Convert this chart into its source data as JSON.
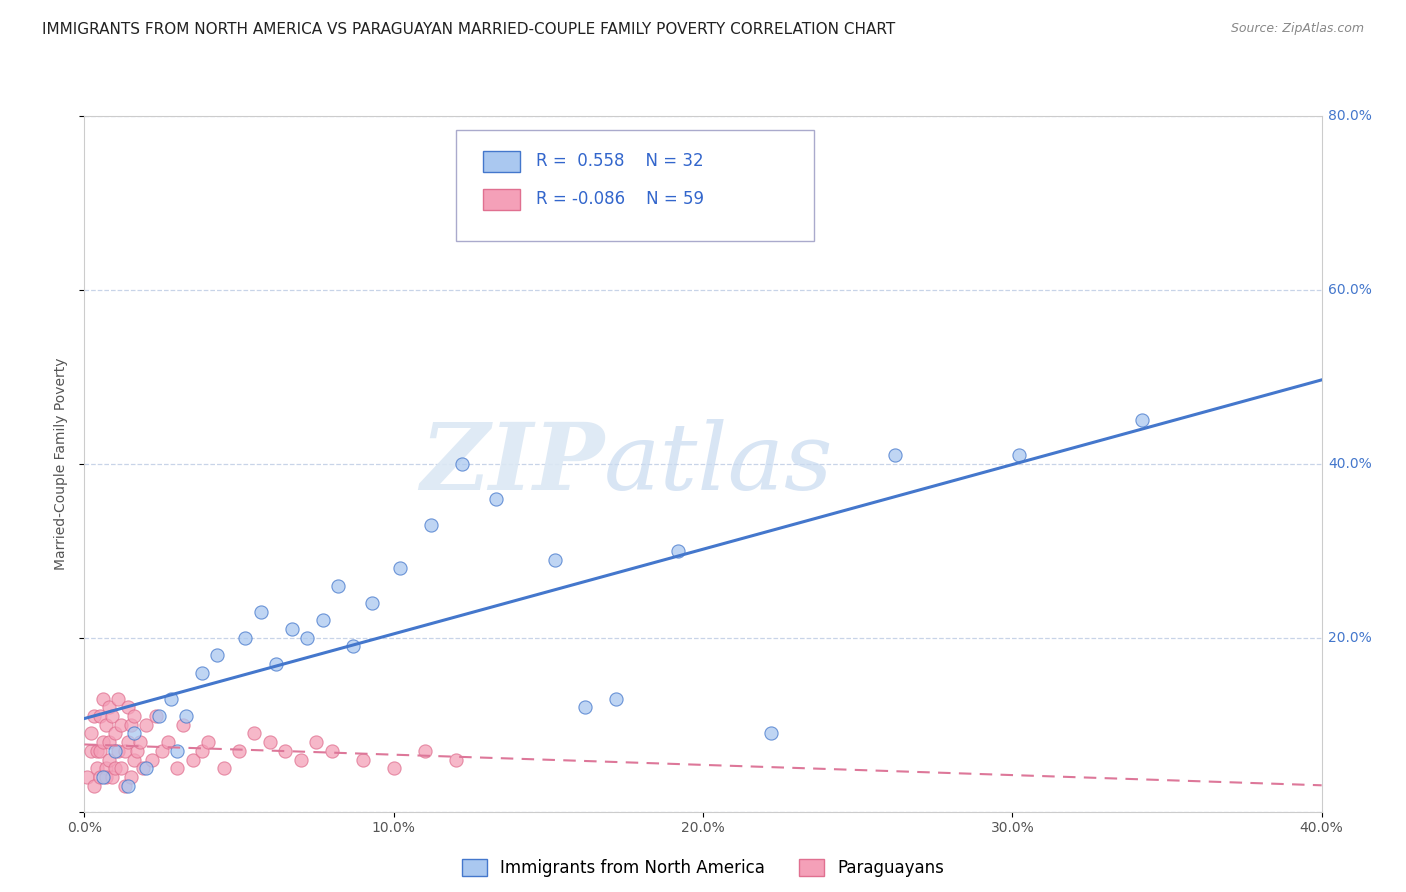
{
  "title": "IMMIGRANTS FROM NORTH AMERICA VS PARAGUAYAN MARRIED-COUPLE FAMILY POVERTY CORRELATION CHART",
  "source": "Source: ZipAtlas.com",
  "ylabel": "Married-Couple Family Poverty",
  "xlim": [
    0.0,
    0.4
  ],
  "ylim": [
    0.0,
    0.8
  ],
  "xticks": [
    0.0,
    0.1,
    0.2,
    0.3,
    0.4
  ],
  "yticks": [
    0.0,
    0.2,
    0.4,
    0.6,
    0.8
  ],
  "ytick_labels": [
    "",
    "20.0%",
    "40.0%",
    "60.0%",
    "80.0%"
  ],
  "xtick_labels": [
    "0.0%",
    "10.0%",
    "20.0%",
    "30.0%",
    "40.0%"
  ],
  "watermark_zip": "ZIP",
  "watermark_atlas": "atlas",
  "series1_color": "#aac8f0",
  "series2_color": "#f4a0b8",
  "line1_color": "#4477cc",
  "line2_color": "#dd7799",
  "R1": 0.558,
  "N1": 32,
  "R2": -0.086,
  "N2": 59,
  "legend_label1": "Immigrants from North America",
  "legend_label2": "Paraguayans",
  "background_color": "#ffffff",
  "grid_color": "#c8d4e8",
  "series1_x": [
    0.006,
    0.01,
    0.014,
    0.016,
    0.02,
    0.024,
    0.028,
    0.03,
    0.033,
    0.038,
    0.043,
    0.052,
    0.057,
    0.062,
    0.067,
    0.072,
    0.077,
    0.082,
    0.087,
    0.093,
    0.102,
    0.112,
    0.122,
    0.133,
    0.152,
    0.162,
    0.172,
    0.192,
    0.222,
    0.262,
    0.302,
    0.342
  ],
  "series1_y": [
    0.04,
    0.07,
    0.03,
    0.09,
    0.05,
    0.11,
    0.13,
    0.07,
    0.11,
    0.16,
    0.18,
    0.2,
    0.23,
    0.17,
    0.21,
    0.2,
    0.22,
    0.26,
    0.19,
    0.24,
    0.28,
    0.33,
    0.4,
    0.36,
    0.29,
    0.12,
    0.13,
    0.3,
    0.09,
    0.41,
    0.41,
    0.45
  ],
  "series2_x": [
    0.001,
    0.002,
    0.002,
    0.003,
    0.003,
    0.004,
    0.004,
    0.005,
    0.005,
    0.005,
    0.006,
    0.006,
    0.007,
    0.007,
    0.007,
    0.008,
    0.008,
    0.008,
    0.009,
    0.009,
    0.01,
    0.01,
    0.011,
    0.011,
    0.012,
    0.012,
    0.013,
    0.013,
    0.014,
    0.014,
    0.015,
    0.015,
    0.016,
    0.016,
    0.017,
    0.018,
    0.019,
    0.02,
    0.022,
    0.023,
    0.025,
    0.027,
    0.03,
    0.032,
    0.035,
    0.038,
    0.04,
    0.045,
    0.05,
    0.055,
    0.06,
    0.065,
    0.07,
    0.075,
    0.08,
    0.09,
    0.1,
    0.11,
    0.12
  ],
  "series2_y": [
    0.04,
    0.07,
    0.09,
    0.03,
    0.11,
    0.05,
    0.07,
    0.07,
    0.11,
    0.04,
    0.08,
    0.13,
    0.05,
    0.1,
    0.04,
    0.06,
    0.12,
    0.08,
    0.04,
    0.11,
    0.05,
    0.09,
    0.07,
    0.13,
    0.05,
    0.1,
    0.07,
    0.03,
    0.08,
    0.12,
    0.04,
    0.1,
    0.06,
    0.11,
    0.07,
    0.08,
    0.05,
    0.1,
    0.06,
    0.11,
    0.07,
    0.08,
    0.05,
    0.1,
    0.06,
    0.07,
    0.08,
    0.05,
    0.07,
    0.09,
    0.08,
    0.07,
    0.06,
    0.08,
    0.07,
    0.06,
    0.05,
    0.07,
    0.06
  ],
  "title_fontsize": 11,
  "axis_fontsize": 10,
  "tick_fontsize": 10,
  "legend_fontsize": 12,
  "right_tick_color": "#4477cc"
}
